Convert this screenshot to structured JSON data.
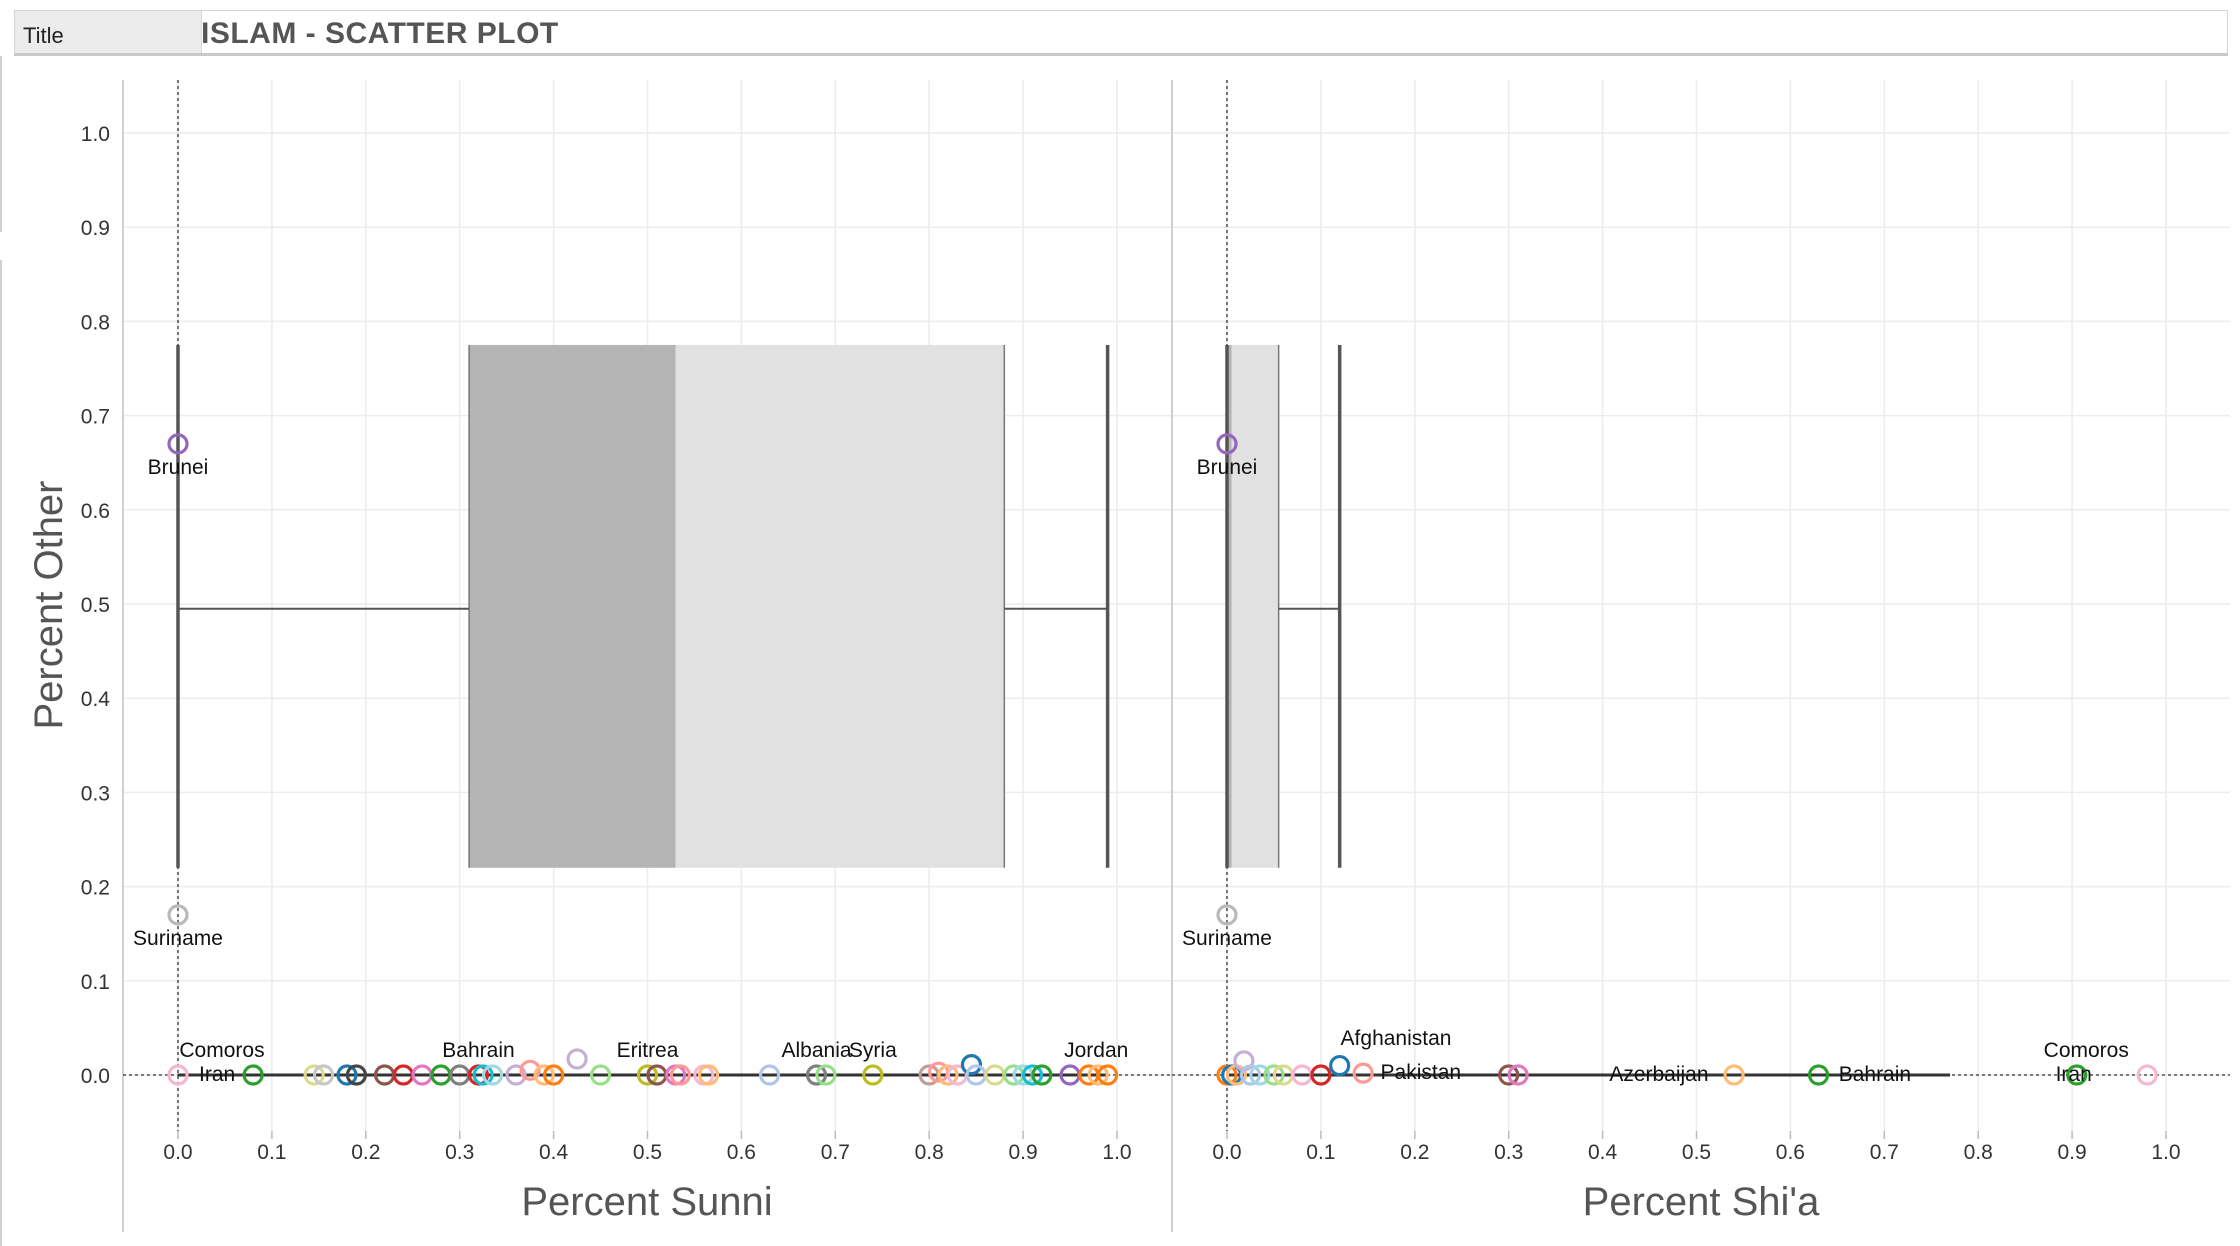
{
  "header": {
    "tab_label": "Title",
    "title": "ISLAM - SCATTER PLOT"
  },
  "colors": {
    "box_dark": "#b4b4b4",
    "box_light": "#e1e1e1",
    "whisker": "#555555",
    "grid": "#ececec"
  },
  "chart_data": {
    "type": "scatter",
    "ylabel": "Percent Other",
    "ylim": [
      -0.06,
      1.05
    ],
    "yticks": [
      "0.0",
      "0.1",
      "0.2",
      "0.3",
      "0.4",
      "0.5",
      "0.6",
      "0.7",
      "0.8",
      "0.9",
      "1.0"
    ],
    "grid": true,
    "panels": [
      {
        "xlabel": "Percent Sunni",
        "xlim": [
          -0.06,
          1.05
        ],
        "xticks": [
          "0.0",
          "0.1",
          "0.2",
          "0.3",
          "0.4",
          "0.5",
          "0.6",
          "0.7",
          "0.8",
          "0.9",
          "1.0"
        ],
        "boxplot": {
          "whisker_low": 0.0,
          "q1": 0.31,
          "median": 0.53,
          "q3": 0.88,
          "whisker_high": 0.99
        },
        "labels": [
          {
            "text": "Brunei",
            "x": 0.0,
            "y": 0.67
          },
          {
            "text": "Suriname",
            "x": 0.0,
            "y": 0.17
          },
          {
            "text": "Comoros",
            "x": 0.0,
            "y": 0.0
          },
          {
            "text": "Iran",
            "x": 0.08,
            "y": 0.0
          },
          {
            "text": "Bahrain",
            "x": 0.32,
            "y": 0.0
          },
          {
            "text": "Eritrea",
            "x": 0.5,
            "y": 0.0
          },
          {
            "text": "Albania",
            "x": 0.68,
            "y": 0.0
          },
          {
            "text": "Syria",
            "x": 0.74,
            "y": 0.0
          },
          {
            "text": "Jordan",
            "x": 0.98,
            "y": 0.0
          }
        ],
        "points": [
          {
            "x": 0.0,
            "y": 0.67,
            "color": "#9467bd"
          },
          {
            "x": 0.0,
            "y": 0.17,
            "color": "#b9b9b9"
          },
          {
            "x": 0.0,
            "y": 0.0,
            "color": "#f7b6d2"
          },
          {
            "x": 0.08,
            "y": 0.0,
            "color": "#2ca02c"
          },
          {
            "x": 0.145,
            "y": 0.0,
            "color": "#dbdb8d"
          },
          {
            "x": 0.155,
            "y": 0.0,
            "color": "#c7c7c7"
          },
          {
            "x": 0.18,
            "y": 0.0,
            "color": "#1f77b4"
          },
          {
            "x": 0.19,
            "y": 0.0,
            "color": "#444444"
          },
          {
            "x": 0.22,
            "y": 0.0,
            "color": "#8c564b"
          },
          {
            "x": 0.24,
            "y": 0.0,
            "color": "#d62728"
          },
          {
            "x": 0.26,
            "y": 0.0,
            "color": "#e377c2"
          },
          {
            "x": 0.28,
            "y": 0.0,
            "color": "#2ca02c"
          },
          {
            "x": 0.3,
            "y": 0.0,
            "color": "#7f7f7f"
          },
          {
            "x": 0.32,
            "y": 0.0,
            "color": "#d62728"
          },
          {
            "x": 0.325,
            "y": 0.0,
            "color": "#17becf"
          },
          {
            "x": 0.335,
            "y": 0.0,
            "color": "#9edae5"
          },
          {
            "x": 0.36,
            "y": 0.0,
            "color": "#c5b0d5"
          },
          {
            "x": 0.375,
            "y": 0.005,
            "color": "#ff9896"
          },
          {
            "x": 0.39,
            "y": 0.0,
            "color": "#ffbb78"
          },
          {
            "x": 0.4,
            "y": 0.0,
            "color": "#ff7f0e"
          },
          {
            "x": 0.425,
            "y": 0.017,
            "color": "#c5b0d5"
          },
          {
            "x": 0.45,
            "y": 0.0,
            "color": "#98df8a"
          },
          {
            "x": 0.5,
            "y": 0.0,
            "color": "#bcbd22"
          },
          {
            "x": 0.51,
            "y": 0.0,
            "color": "#8c564b"
          },
          {
            "x": 0.53,
            "y": 0.0,
            "color": "#e377c2"
          },
          {
            "x": 0.535,
            "y": 0.0,
            "color": "#ff9896"
          },
          {
            "x": 0.56,
            "y": 0.0,
            "color": "#f7b6d2"
          },
          {
            "x": 0.565,
            "y": 0.0,
            "color": "#ffbb78"
          },
          {
            "x": 0.63,
            "y": 0.0,
            "color": "#aec7e8"
          },
          {
            "x": 0.68,
            "y": 0.0,
            "color": "#7f7f7f"
          },
          {
            "x": 0.69,
            "y": 0.0,
            "color": "#98df8a"
          },
          {
            "x": 0.74,
            "y": 0.0,
            "color": "#bcbd22"
          },
          {
            "x": 0.8,
            "y": 0.0,
            "color": "#c49c94"
          },
          {
            "x": 0.81,
            "y": 0.003,
            "color": "#ff9896"
          },
          {
            "x": 0.82,
            "y": 0.0,
            "color": "#ffbb78"
          },
          {
            "x": 0.83,
            "y": 0.0,
            "color": "#f7b6d2"
          },
          {
            "x": 0.845,
            "y": 0.011,
            "color": "#1f77b4"
          },
          {
            "x": 0.85,
            "y": 0.0,
            "color": "#aec7e8"
          },
          {
            "x": 0.87,
            "y": 0.0,
            "color": "#dbdb8d"
          },
          {
            "x": 0.89,
            "y": 0.0,
            "color": "#98df8a"
          },
          {
            "x": 0.9,
            "y": 0.0,
            "color": "#9edae5"
          },
          {
            "x": 0.91,
            "y": 0.0,
            "color": "#17becf"
          },
          {
            "x": 0.92,
            "y": 0.0,
            "color": "#2ca02c"
          },
          {
            "x": 0.95,
            "y": 0.0,
            "color": "#9467bd"
          },
          {
            "x": 0.97,
            "y": 0.0,
            "color": "#ff7f0e"
          },
          {
            "x": 0.98,
            "y": 0.0,
            "color": "#ffbb78"
          },
          {
            "x": 0.99,
            "y": 0.0,
            "color": "#ff7f0e"
          }
        ]
      },
      {
        "xlabel": "Percent Shi'a",
        "xlim": [
          -0.06,
          1.05
        ],
        "xticks": [
          "0.0",
          "0.1",
          "0.2",
          "0.3",
          "0.4",
          "0.5",
          "0.6",
          "0.7",
          "0.8",
          "0.9",
          "1.0"
        ],
        "boxplot": {
          "whisker_low": 0.0,
          "q1": 0.0,
          "median": 0.005,
          "q3": 0.055,
          "whisker_high": 0.12
        },
        "labels": [
          {
            "text": "Brunei",
            "x": 0.0,
            "y": 0.67
          },
          {
            "text": "Suriname",
            "x": 0.0,
            "y": 0.17
          },
          {
            "text": "Afghanistan",
            "x": 0.18,
            "y": 0.0
          },
          {
            "text": "Pakistan",
            "x": 0.2,
            "y": 0.0
          },
          {
            "text": "Azerbaijan",
            "x": 0.46,
            "y": 0.0
          },
          {
            "text": "Bahrain",
            "x": 0.69,
            "y": 0.0
          },
          {
            "text": "Comoros",
            "x": 0.93,
            "y": 0.0
          },
          {
            "text": "Iran",
            "x": 0.94,
            "y": 0.0
          }
        ],
        "points": [
          {
            "x": 0.0,
            "y": 0.67,
            "color": "#9467bd"
          },
          {
            "x": 0.0,
            "y": 0.17,
            "color": "#b9b9b9"
          },
          {
            "x": 0.0,
            "y": 0.0,
            "color": "#ff7f0e"
          },
          {
            "x": 0.005,
            "y": 0.0,
            "color": "#1f77b4"
          },
          {
            "x": 0.01,
            "y": 0.0,
            "color": "#ffbb78"
          },
          {
            "x": 0.018,
            "y": 0.015,
            "color": "#c5b0d5"
          },
          {
            "x": 0.025,
            "y": 0.0,
            "color": "#aec7e8"
          },
          {
            "x": 0.035,
            "y": 0.0,
            "color": "#9edae5"
          },
          {
            "x": 0.05,
            "y": 0.0,
            "color": "#98df8a"
          },
          {
            "x": 0.06,
            "y": 0.0,
            "color": "#dbdb8d"
          },
          {
            "x": 0.08,
            "y": 0.0,
            "color": "#f7b6d2"
          },
          {
            "x": 0.1,
            "y": 0.0,
            "color": "#d62728"
          },
          {
            "x": 0.12,
            "y": 0.01,
            "color": "#1f77b4"
          },
          {
            "x": 0.145,
            "y": 0.002,
            "color": "#ff9896"
          },
          {
            "x": 0.3,
            "y": 0.0,
            "color": "#8c564b"
          },
          {
            "x": 0.31,
            "y": 0.0,
            "color": "#e377c2"
          },
          {
            "x": 0.54,
            "y": 0.0,
            "color": "#ffbb78"
          },
          {
            "x": 0.63,
            "y": 0.0,
            "color": "#2ca02c"
          },
          {
            "x": 0.905,
            "y": 0.0,
            "color": "#2ca02c"
          },
          {
            "x": 0.98,
            "y": 0.0,
            "color": "#f7b6d2"
          }
        ]
      }
    ]
  }
}
